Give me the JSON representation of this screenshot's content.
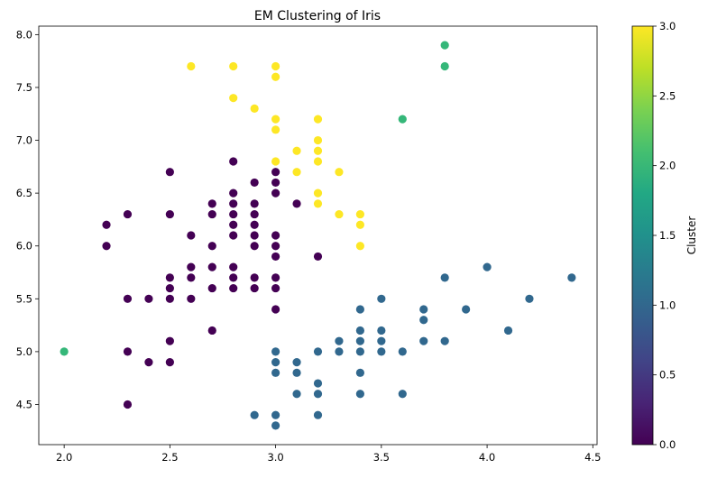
{
  "chart_data": {
    "type": "scatter",
    "title": "EM Clustering of Iris",
    "xlabel": "",
    "ylabel": "",
    "xlim": [
      1.88,
      4.52
    ],
    "ylim": [
      4.12,
      8.08
    ],
    "xticks": [
      "2.0",
      "2.5",
      "3.0",
      "3.5",
      "4.0",
      "4.5"
    ],
    "yticks": [
      "4.5",
      "5.0",
      "5.5",
      "6.0",
      "6.5",
      "7.0",
      "7.5",
      "8.0"
    ],
    "grid": false,
    "colorbar": {
      "label": "Cluster",
      "range": [
        0,
        3
      ],
      "ticks": [
        "0.0",
        "0.5",
        "1.0",
        "1.5",
        "2.0",
        "2.5",
        "3.0"
      ],
      "colormap": "viridis"
    },
    "colors": {
      "cluster_0": "#440154",
      "cluster_1": "#31688e",
      "cluster_2": "#35b779",
      "cluster_3": "#fde725"
    },
    "points": [
      {
        "x": 2.6,
        "y": 7.7,
        "c": 3
      },
      {
        "x": 2.8,
        "y": 7.7,
        "c": 3
      },
      {
        "x": 3.0,
        "y": 7.7,
        "c": 3
      },
      {
        "x": 3.0,
        "y": 7.6,
        "c": 3
      },
      {
        "x": 2.8,
        "y": 7.4,
        "c": 3
      },
      {
        "x": 2.9,
        "y": 7.3,
        "c": 3
      },
      {
        "x": 3.0,
        "y": 7.2,
        "c": 3
      },
      {
        "x": 3.2,
        "y": 7.2,
        "c": 3
      },
      {
        "x": 3.0,
        "y": 7.1,
        "c": 3
      },
      {
        "x": 3.2,
        "y": 7.0,
        "c": 3
      },
      {
        "x": 3.1,
        "y": 6.9,
        "c": 3
      },
      {
        "x": 3.2,
        "y": 6.9,
        "c": 3
      },
      {
        "x": 3.0,
        "y": 6.8,
        "c": 3
      },
      {
        "x": 3.2,
        "y": 6.8,
        "c": 3
      },
      {
        "x": 3.1,
        "y": 6.7,
        "c": 3
      },
      {
        "x": 3.3,
        "y": 6.7,
        "c": 3
      },
      {
        "x": 3.2,
        "y": 6.5,
        "c": 3
      },
      {
        "x": 3.2,
        "y": 6.4,
        "c": 3
      },
      {
        "x": 3.3,
        "y": 6.3,
        "c": 3
      },
      {
        "x": 3.4,
        "y": 6.3,
        "c": 3
      },
      {
        "x": 3.4,
        "y": 6.2,
        "c": 3
      },
      {
        "x": 3.4,
        "y": 6.0,
        "c": 3
      },
      {
        "x": 3.8,
        "y": 7.9,
        "c": 2
      },
      {
        "x": 3.8,
        "y": 7.7,
        "c": 2
      },
      {
        "x": 3.6,
        "y": 7.2,
        "c": 2
      },
      {
        "x": 2.0,
        "y": 5.0,
        "c": 2
      },
      {
        "x": 2.2,
        "y": 6.2,
        "c": 0
      },
      {
        "x": 2.2,
        "y": 6.0,
        "c": 0
      },
      {
        "x": 2.3,
        "y": 6.3,
        "c": 0
      },
      {
        "x": 2.3,
        "y": 5.5,
        "c": 0
      },
      {
        "x": 2.3,
        "y": 5.0,
        "c": 0
      },
      {
        "x": 2.3,
        "y": 4.5,
        "c": 0
      },
      {
        "x": 2.4,
        "y": 5.5,
        "c": 0
      },
      {
        "x": 2.4,
        "y": 4.9,
        "c": 0
      },
      {
        "x": 2.5,
        "y": 6.7,
        "c": 0
      },
      {
        "x": 2.5,
        "y": 6.3,
        "c": 0
      },
      {
        "x": 2.5,
        "y": 5.7,
        "c": 0
      },
      {
        "x": 2.5,
        "y": 5.6,
        "c": 0
      },
      {
        "x": 2.5,
        "y": 5.5,
        "c": 0
      },
      {
        "x": 2.5,
        "y": 5.1,
        "c": 0
      },
      {
        "x": 2.5,
        "y": 4.9,
        "c": 0
      },
      {
        "x": 2.6,
        "y": 6.1,
        "c": 0
      },
      {
        "x": 2.6,
        "y": 5.8,
        "c": 0
      },
      {
        "x": 2.6,
        "y": 5.7,
        "c": 0
      },
      {
        "x": 2.6,
        "y": 5.5,
        "c": 0
      },
      {
        "x": 2.7,
        "y": 6.4,
        "c": 0
      },
      {
        "x": 2.7,
        "y": 6.3,
        "c": 0
      },
      {
        "x": 2.7,
        "y": 6.0,
        "c": 0
      },
      {
        "x": 2.7,
        "y": 5.8,
        "c": 0
      },
      {
        "x": 2.7,
        "y": 5.6,
        "c": 0
      },
      {
        "x": 2.7,
        "y": 5.2,
        "c": 0
      },
      {
        "x": 2.8,
        "y": 6.8,
        "c": 0
      },
      {
        "x": 2.8,
        "y": 6.5,
        "c": 0
      },
      {
        "x": 2.8,
        "y": 6.4,
        "c": 0
      },
      {
        "x": 2.8,
        "y": 6.3,
        "c": 0
      },
      {
        "x": 2.8,
        "y": 6.2,
        "c": 0
      },
      {
        "x": 2.8,
        "y": 6.1,
        "c": 0
      },
      {
        "x": 2.8,
        "y": 5.8,
        "c": 0
      },
      {
        "x": 2.8,
        "y": 5.7,
        "c": 0
      },
      {
        "x": 2.8,
        "y": 5.6,
        "c": 0
      },
      {
        "x": 2.9,
        "y": 6.6,
        "c": 0
      },
      {
        "x": 2.9,
        "y": 6.4,
        "c": 0
      },
      {
        "x": 2.9,
        "y": 6.3,
        "c": 0
      },
      {
        "x": 2.9,
        "y": 6.2,
        "c": 0
      },
      {
        "x": 2.9,
        "y": 6.1,
        "c": 0
      },
      {
        "x": 2.9,
        "y": 6.0,
        "c": 0
      },
      {
        "x": 2.9,
        "y": 5.7,
        "c": 0
      },
      {
        "x": 2.9,
        "y": 5.6,
        "c": 0
      },
      {
        "x": 3.0,
        "y": 6.7,
        "c": 0
      },
      {
        "x": 3.0,
        "y": 6.6,
        "c": 0
      },
      {
        "x": 3.0,
        "y": 6.5,
        "c": 0
      },
      {
        "x": 3.0,
        "y": 6.1,
        "c": 0
      },
      {
        "x": 3.0,
        "y": 6.0,
        "c": 0
      },
      {
        "x": 3.0,
        "y": 5.9,
        "c": 0
      },
      {
        "x": 3.0,
        "y": 5.7,
        "c": 0
      },
      {
        "x": 3.0,
        "y": 5.6,
        "c": 0
      },
      {
        "x": 3.0,
        "y": 5.4,
        "c": 0
      },
      {
        "x": 3.1,
        "y": 6.4,
        "c": 0
      },
      {
        "x": 3.2,
        "y": 5.9,
        "c": 0
      },
      {
        "x": 2.9,
        "y": 4.4,
        "c": 1
      },
      {
        "x": 3.0,
        "y": 5.0,
        "c": 1
      },
      {
        "x": 3.0,
        "y": 4.9,
        "c": 1
      },
      {
        "x": 3.0,
        "y": 4.8,
        "c": 1
      },
      {
        "x": 3.0,
        "y": 4.4,
        "c": 1
      },
      {
        "x": 3.0,
        "y": 4.3,
        "c": 1
      },
      {
        "x": 3.1,
        "y": 4.9,
        "c": 1
      },
      {
        "x": 3.1,
        "y": 4.8,
        "c": 1
      },
      {
        "x": 3.1,
        "y": 4.6,
        "c": 1
      },
      {
        "x": 3.2,
        "y": 5.0,
        "c": 1
      },
      {
        "x": 3.2,
        "y": 4.7,
        "c": 1
      },
      {
        "x": 3.2,
        "y": 4.6,
        "c": 1
      },
      {
        "x": 3.2,
        "y": 4.4,
        "c": 1
      },
      {
        "x": 3.3,
        "y": 5.1,
        "c": 1
      },
      {
        "x": 3.3,
        "y": 5.0,
        "c": 1
      },
      {
        "x": 3.4,
        "y": 5.4,
        "c": 1
      },
      {
        "x": 3.4,
        "y": 5.2,
        "c": 1
      },
      {
        "x": 3.4,
        "y": 5.1,
        "c": 1
      },
      {
        "x": 3.4,
        "y": 5.0,
        "c": 1
      },
      {
        "x": 3.4,
        "y": 4.8,
        "c": 1
      },
      {
        "x": 3.4,
        "y": 4.6,
        "c": 1
      },
      {
        "x": 3.5,
        "y": 5.5,
        "c": 1
      },
      {
        "x": 3.5,
        "y": 5.2,
        "c": 1
      },
      {
        "x": 3.5,
        "y": 5.1,
        "c": 1
      },
      {
        "x": 3.5,
        "y": 5.0,
        "c": 1
      },
      {
        "x": 3.6,
        "y": 5.0,
        "c": 1
      },
      {
        "x": 3.6,
        "y": 4.6,
        "c": 1
      },
      {
        "x": 3.7,
        "y": 5.4,
        "c": 1
      },
      {
        "x": 3.7,
        "y": 5.3,
        "c": 1
      },
      {
        "x": 3.7,
        "y": 5.1,
        "c": 1
      },
      {
        "x": 3.8,
        "y": 5.7,
        "c": 1
      },
      {
        "x": 3.8,
        "y": 5.1,
        "c": 1
      },
      {
        "x": 3.9,
        "y": 5.4,
        "c": 1
      },
      {
        "x": 4.0,
        "y": 5.8,
        "c": 1
      },
      {
        "x": 4.1,
        "y": 5.2,
        "c": 1
      },
      {
        "x": 4.2,
        "y": 5.5,
        "c": 1
      },
      {
        "x": 4.4,
        "y": 5.7,
        "c": 1
      }
    ]
  }
}
